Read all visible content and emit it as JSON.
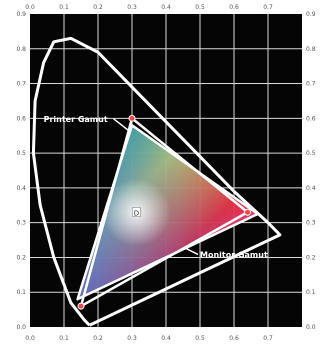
{
  "chart_data": {
    "type": "scatter",
    "title": "",
    "xlabel": "",
    "ylabel": "",
    "xlim": [
      0.0,
      0.8
    ],
    "ylim": [
      0.0,
      0.9
    ],
    "grid": true,
    "x_ticks": [
      "0.0",
      "0.1",
      "0.2",
      "0.3",
      "0.4",
      "0.5",
      "0.6",
      "0.7"
    ],
    "y_ticks": [
      "0.0",
      "0.1",
      "0.2",
      "0.3",
      "0.4",
      "0.5",
      "0.6",
      "0.7",
      "0.8",
      "0.9"
    ],
    "spectral_locus": [
      {
        "x": 0.175,
        "y": 0.005
      },
      {
        "x": 0.16,
        "y": 0.02
      },
      {
        "x": 0.12,
        "y": 0.07
      },
      {
        "x": 0.07,
        "y": 0.2
      },
      {
        "x": 0.03,
        "y": 0.35
      },
      {
        "x": 0.01,
        "y": 0.5
      },
      {
        "x": 0.015,
        "y": 0.65
      },
      {
        "x": 0.04,
        "y": 0.76
      },
      {
        "x": 0.07,
        "y": 0.82
      },
      {
        "x": 0.12,
        "y": 0.83
      },
      {
        "x": 0.2,
        "y": 0.79
      },
      {
        "x": 0.3,
        "y": 0.69
      },
      {
        "x": 0.4,
        "y": 0.59
      },
      {
        "x": 0.5,
        "y": 0.49
      },
      {
        "x": 0.6,
        "y": 0.39
      },
      {
        "x": 0.7,
        "y": 0.3
      },
      {
        "x": 0.735,
        "y": 0.265
      },
      {
        "x": 0.175,
        "y": 0.005
      }
    ],
    "series": [
      {
        "name": "Printer Gamut",
        "points": [
          {
            "x": 0.3,
            "y": 0.58
          },
          {
            "x": 0.67,
            "y": 0.325
          },
          {
            "x": 0.14,
            "y": 0.08
          }
        ]
      },
      {
        "name": "Monitor Gamut",
        "points": [
          {
            "x": 0.3,
            "y": 0.6
          },
          {
            "x": 0.64,
            "y": 0.33
          },
          {
            "x": 0.15,
            "y": 0.06
          }
        ]
      }
    ],
    "white_point": {
      "x": 0.313,
      "y": 0.329,
      "label": "D"
    },
    "annotations": [
      {
        "text": "Printer Gamut",
        "x": 0.04,
        "y": 0.59
      },
      {
        "text": "Monitor Gamut",
        "x": 0.5,
        "y": 0.2
      }
    ]
  }
}
